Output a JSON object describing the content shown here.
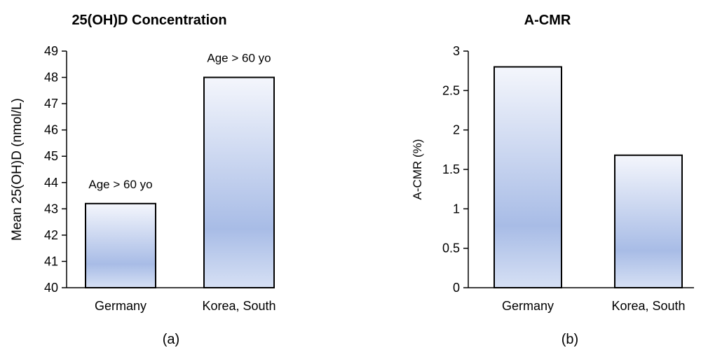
{
  "chart_data": [
    {
      "type": "bar",
      "title": "25(OH)D Concentration",
      "ylabel": "Mean 25(OH)D (nmol/L)",
      "xlabel": "",
      "categories": [
        "Germany",
        "Korea, South"
      ],
      "values": [
        43.2,
        48.0
      ],
      "ylim": [
        40,
        49
      ],
      "yticks": [
        "40",
        "41",
        "42",
        "43",
        "44",
        "45",
        "46",
        "47",
        "48",
        "49"
      ],
      "annotations": [
        "Age > 60 yo",
        "Age > 60 yo"
      ],
      "subfigure_label": "(a)",
      "grid": false,
      "bar_fill_top": "#f4f6fc",
      "bar_fill_bottom": "#a8bce6"
    },
    {
      "type": "bar",
      "title": "A-CMR",
      "ylabel": "A-CMR (%)",
      "xlabel": "",
      "categories": [
        "Germany",
        "Korea, South"
      ],
      "values": [
        2.8,
        1.68
      ],
      "ylim": [
        0,
        3
      ],
      "yticks": [
        "0",
        "0.5",
        "1",
        "1.5",
        "2",
        "2.5",
        "3"
      ],
      "annotations": [],
      "subfigure_label": "(b)",
      "grid": false,
      "bar_fill_top": "#f4f6fc",
      "bar_fill_bottom": "#a8bce6"
    }
  ]
}
